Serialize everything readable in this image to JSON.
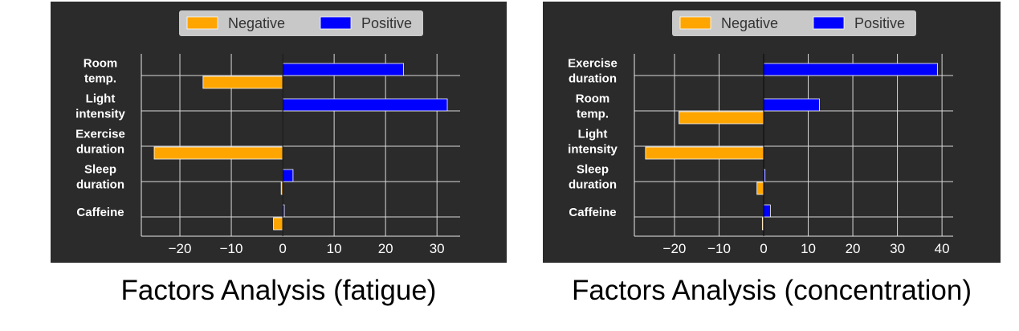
{
  "chart_data": [
    {
      "type": "bar",
      "orientation": "horizontal",
      "title": "Factors Analysis (fatigue)",
      "categories": [
        "Room\ntemp.",
        "Light\nintensity",
        "Exercise\nduration",
        "Sleep\nduration",
        "Caffeine"
      ],
      "series": [
        {
          "name": "Positive",
          "color": "#0000ff",
          "values": [
            23.5,
            32,
            0,
            2,
            0.3
          ]
        },
        {
          "name": "Negative",
          "color": "#ffa500",
          "values": [
            -15.5,
            0,
            -25,
            -0.3,
            -1.8
          ]
        }
      ],
      "xlim": [
        -27.5,
        34.5
      ],
      "xticks": [
        -20,
        -10,
        0,
        10,
        20,
        30
      ],
      "xtick_labels": [
        "−20",
        "−10",
        "0",
        "10",
        "20",
        "30"
      ],
      "legend": "top-center",
      "grid": true,
      "background": "#2b2b2b"
    },
    {
      "type": "bar",
      "orientation": "horizontal",
      "title": "Factors Analysis (concentration)",
      "categories": [
        "Exercise\nduration",
        "Room\ntemp.",
        "Light\nintensity",
        "Sleep\nduration",
        "Caffeine"
      ],
      "series": [
        {
          "name": "Positive",
          "color": "#0000ff",
          "values": [
            39,
            12.5,
            0,
            0.3,
            1.5
          ]
        },
        {
          "name": "Negative",
          "color": "#ffa500",
          "values": [
            0,
            -19,
            -26.5,
            -1.5,
            -0.3
          ]
        }
      ],
      "xlim": [
        -29,
        42.5
      ],
      "xticks": [
        -20,
        -10,
        0,
        10,
        20,
        30,
        40
      ],
      "xtick_labels": [
        "−20",
        "−10",
        "0",
        "10",
        "20",
        "30",
        "40"
      ],
      "legend": "top-center",
      "grid": true,
      "background": "#2b2b2b"
    }
  ]
}
